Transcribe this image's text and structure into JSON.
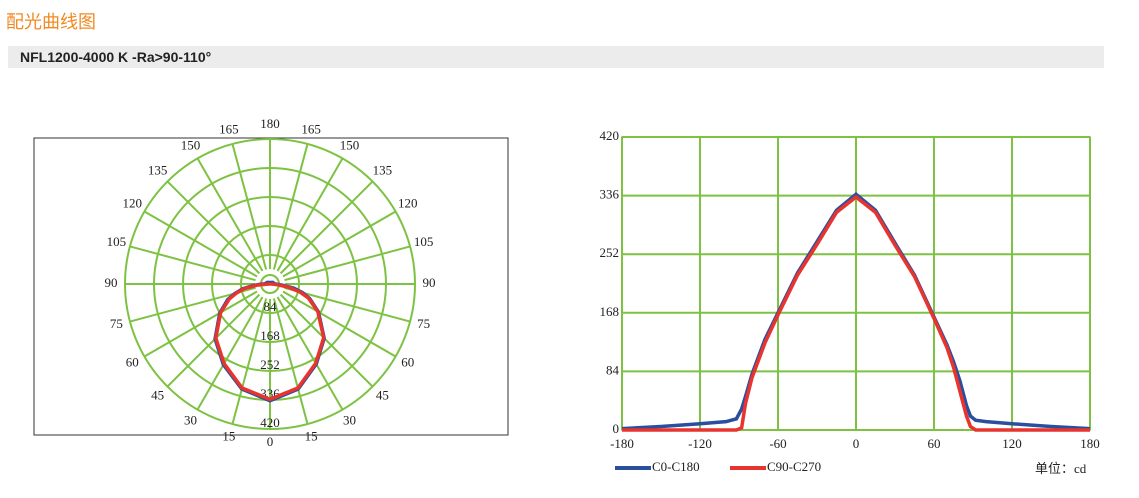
{
  "header": {
    "title": "配光曲线图",
    "subtitle": "NFL1200-4000 K -Ra>90-110°"
  },
  "chart_data": [
    {
      "type": "polar",
      "theta": [
        -180,
        -150,
        -120,
        -100,
        -92,
        -88,
        -85,
        -80,
        -75,
        -70,
        -60,
        -45,
        -30,
        -15,
        0,
        15,
        30,
        45,
        60,
        70,
        75,
        80,
        85,
        88,
        92,
        100,
        120,
        150,
        180
      ],
      "angle_ticks": [
        0,
        15,
        30,
        45,
        60,
        75,
        90,
        105,
        120,
        135,
        150,
        165,
        180
      ],
      "rlim": [
        0,
        420
      ],
      "rticks": [
        84,
        168,
        252,
        336,
        420
      ],
      "grid_color": "#7dc242",
      "series": [
        {
          "name": "C0-C180",
          "color": "#2b4f9e",
          "values": [
            2,
            5,
            9,
            12,
            16,
            30,
            48,
            80,
            105,
            130,
            168,
            225,
            270,
            315,
            338,
            315,
            268,
            222,
            162,
            122,
            98,
            70,
            35,
            20,
            14,
            12,
            9,
            5,
            2
          ]
        },
        {
          "name": "C90-C270",
          "color": "#e8342f",
          "values": [
            0,
            0,
            0,
            0,
            0,
            3,
            38,
            75,
            100,
            125,
            165,
            222,
            266,
            312,
            334,
            312,
            265,
            220,
            160,
            118,
            90,
            55,
            20,
            5,
            0,
            0,
            0,
            0,
            0
          ]
        }
      ]
    },
    {
      "type": "line",
      "x": [
        -180,
        -150,
        -120,
        -100,
        -92,
        -88,
        -85,
        -80,
        -75,
        -70,
        -60,
        -45,
        -30,
        -15,
        0,
        15,
        30,
        45,
        60,
        70,
        75,
        80,
        85,
        88,
        92,
        100,
        120,
        150,
        180
      ],
      "xlim": [
        -180,
        180
      ],
      "xticks": [
        -180,
        -120,
        -60,
        0,
        60,
        120,
        180
      ],
      "ylim": [
        0,
        420
      ],
      "yticks": [
        0,
        84,
        168,
        252,
        336,
        420
      ],
      "grid": true,
      "grid_color": "#7dc242",
      "unit_label": "单位：cd",
      "series": [
        {
          "name": "C0-C180",
          "color": "#2b4f9e",
          "values": [
            2,
            5,
            9,
            12,
            16,
            30,
            48,
            80,
            105,
            130,
            168,
            225,
            270,
            315,
            338,
            315,
            268,
            222,
            162,
            122,
            98,
            70,
            35,
            20,
            14,
            12,
            9,
            5,
            2
          ]
        },
        {
          "name": "C90-C270",
          "color": "#e8342f",
          "values": [
            0,
            0,
            0,
            0,
            0,
            3,
            38,
            75,
            100,
            125,
            165,
            222,
            266,
            312,
            334,
            312,
            265,
            220,
            160,
            118,
            90,
            55,
            20,
            5,
            0,
            0,
            0,
            0,
            0
          ]
        }
      ]
    }
  ]
}
